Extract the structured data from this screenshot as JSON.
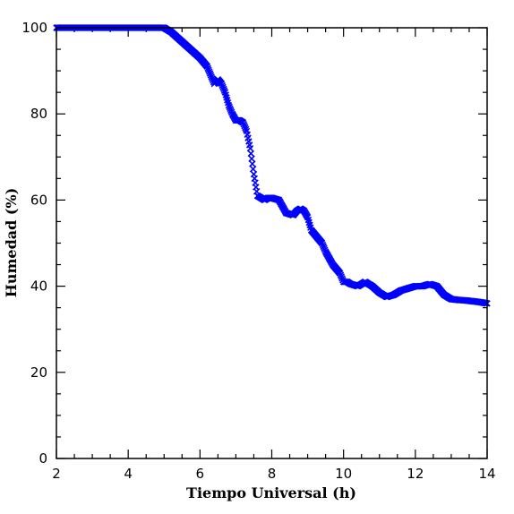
{
  "chart_data": {
    "type": "scatter",
    "title": "",
    "xlabel": "Tiempo Universal (h)",
    "ylabel": "Humedad (%)",
    "xlim": [
      2,
      14
    ],
    "ylim": [
      0,
      100
    ],
    "x_major_ticks": [
      2,
      4,
      6,
      8,
      10,
      12,
      14
    ],
    "y_major_ticks": [
      0,
      20,
      40,
      60,
      80,
      100
    ],
    "x_minor_step": 0.5,
    "y_minor_step": 5,
    "marker": "x",
    "grid": false,
    "colors": {
      "series": "#0000ff",
      "axes": "#000000",
      "background": "#ffffff"
    },
    "x_tick_labels": [
      "2",
      "4",
      "6",
      "8",
      "10",
      "12",
      "14"
    ],
    "y_tick_labels": [
      "0",
      "20",
      "40",
      "60",
      "80",
      "100"
    ],
    "series": [
      {
        "x": [
          2.0,
          2.5,
          3.0,
          3.5,
          4.0,
          4.5,
          5.0,
          5.2,
          5.4,
          5.6,
          5.8,
          6.0,
          6.2,
          6.3,
          6.4,
          6.5,
          6.6,
          6.7,
          6.8,
          6.9,
          7.0,
          7.1,
          7.2,
          7.3,
          7.4,
          7.5,
          7.6,
          7.7,
          7.8,
          7.9,
          8.0,
          8.2,
          8.4,
          8.6,
          8.7,
          8.8,
          8.9,
          9.0,
          9.1,
          9.2,
          9.3,
          9.4,
          9.5,
          9.6,
          9.7,
          9.8,
          9.9,
          10.0,
          10.1,
          10.2,
          10.4,
          10.6,
          10.8,
          11.0,
          11.2,
          11.4,
          11.6,
          11.8,
          12.0,
          12.2,
          12.4,
          12.6,
          12.8,
          13.0,
          13.2,
          13.4,
          13.6,
          13.8,
          14.0
        ],
        "y": [
          100,
          100,
          100,
          100,
          100,
          100,
          100,
          99,
          97.5,
          96,
          94.5,
          93,
          91,
          89,
          87,
          88,
          87,
          85,
          82,
          80,
          78.5,
          78.5,
          78,
          76,
          72,
          66,
          61,
          60.5,
          60,
          60.5,
          60.5,
          60,
          57,
          56.5,
          57.5,
          58,
          57.5,
          56,
          53,
          52,
          51,
          50,
          48,
          46.5,
          45,
          44,
          43,
          41,
          41,
          40.5,
          40,
          41,
          40,
          38.5,
          37.5,
          38,
          39,
          39.5,
          40,
          40,
          40.5,
          40,
          38,
          37,
          36.8,
          36.7,
          36.5,
          36.3,
          36
        ]
      }
    ]
  }
}
